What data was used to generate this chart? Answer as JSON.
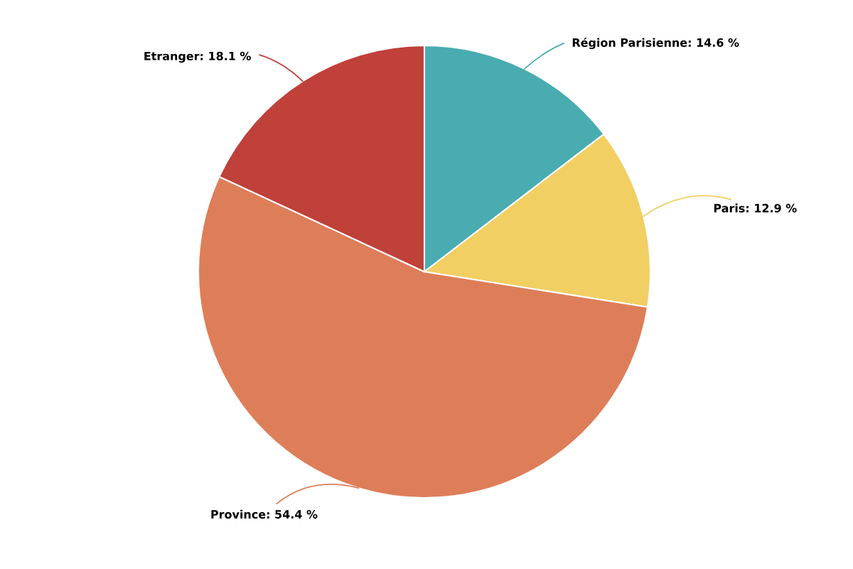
{
  "chart_data": {
    "type": "pie",
    "categories": [
      "Région Parisienne",
      "Paris",
      "Province",
      "Etranger"
    ],
    "values": [
      14.6,
      12.9,
      54.4,
      18.1
    ],
    "colors": [
      "#48acb1",
      "#f1cf63",
      "#dd7e59",
      "#c0403a"
    ],
    "value_labels": [
      "14.6 %",
      "12.9 %",
      "54.4 %",
      "18.1 %"
    ]
  }
}
